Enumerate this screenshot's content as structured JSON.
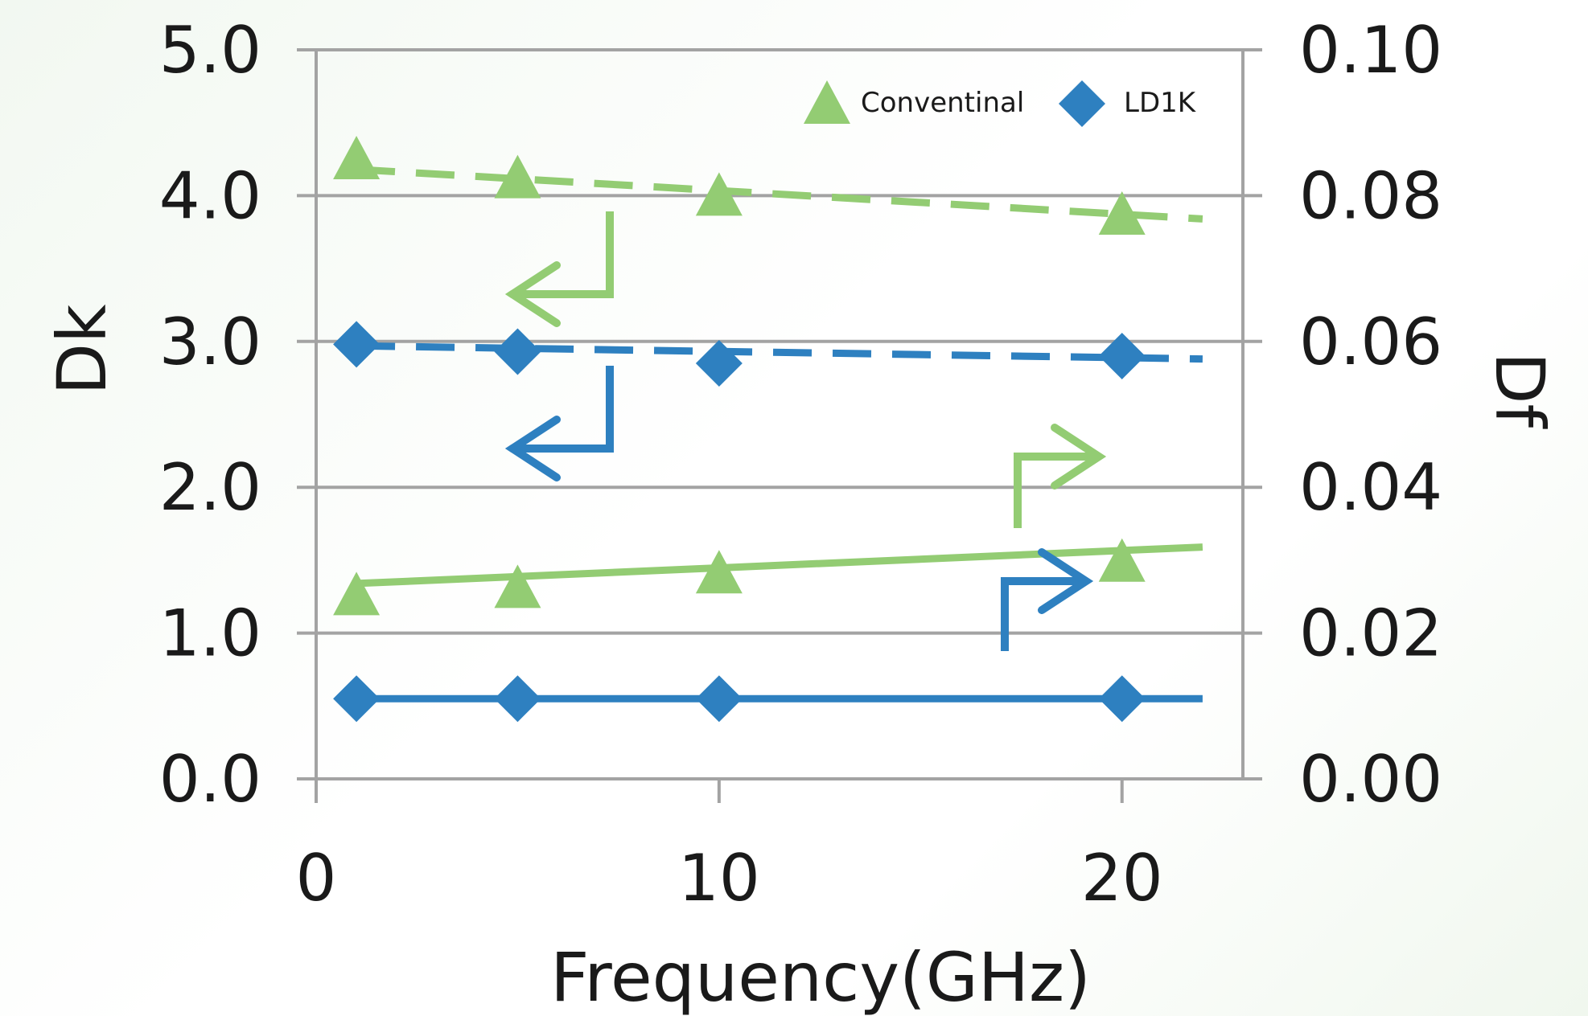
{
  "chart_data": {
    "type": "line",
    "xlabel": "Frequency(GHz)",
    "ylabel_left": "Dk",
    "ylabel_right": "Df",
    "x_ticks": [
      "0",
      "10",
      "20"
    ],
    "xlim": [
      0,
      23
    ],
    "y_left_ticks": [
      "0.0",
      "1.0",
      "2.0",
      "3.0",
      "4.0",
      "5.0"
    ],
    "y_left_lim": [
      0,
      5
    ],
    "y_right_ticks": [
      "0.00",
      "0.02",
      "0.04",
      "0.06",
      "0.08",
      "0.10"
    ],
    "y_right_lim": [
      0,
      0.1
    ],
    "grid": "horizontal",
    "legend_position": "top-right",
    "x": [
      1,
      5,
      10,
      20
    ],
    "series": [
      {
        "name": "Conventinal",
        "quantity": "Dk",
        "axis": "left",
        "values": [
          4.25,
          4.12,
          4.0,
          3.87
        ],
        "color": "#93cc73",
        "marker": "triangle",
        "line": "dashed-trend"
      },
      {
        "name": "LD1K",
        "quantity": "Dk",
        "axis": "left",
        "values": [
          2.98,
          2.93,
          2.85,
          2.9
        ],
        "color": "#2e80c0",
        "marker": "diamond",
        "line": "dashed-trend"
      },
      {
        "name": "Conventinal",
        "quantity": "Df",
        "axis": "right",
        "values": [
          0.0252,
          0.0262,
          0.0282,
          0.0298
        ],
        "color": "#93cc73",
        "marker": "triangle",
        "line": "solid-trend"
      },
      {
        "name": "LD1K",
        "quantity": "Df",
        "axis": "right",
        "values": [
          0.011,
          0.011,
          0.011,
          0.011
        ],
        "color": "#2e80c0",
        "marker": "diamond",
        "line": "solid-trend"
      }
    ],
    "trendlines": [
      {
        "series": "Conventinal",
        "axis": "left",
        "style": "dashed",
        "color": "#93cc73",
        "x": [
          1,
          22
        ],
        "y": [
          4.18,
          3.84
        ]
      },
      {
        "series": "LD1K",
        "axis": "left",
        "style": "dashed",
        "color": "#2e80c0",
        "x": [
          1,
          22
        ],
        "y": [
          2.97,
          2.88
        ]
      },
      {
        "series": "Conventinal",
        "axis": "right",
        "style": "solid",
        "color": "#93cc73",
        "x": [
          1,
          22
        ],
        "y": [
          0.0268,
          0.0318
        ]
      },
      {
        "series": "LD1K",
        "axis": "right",
        "style": "solid",
        "color": "#2e80c0",
        "x": [
          1,
          22
        ],
        "y": [
          0.011,
          0.011
        ]
      }
    ],
    "annotations": [
      {
        "type": "arrow",
        "points_to": "left-axis",
        "color": "#93cc73",
        "series": "Conventinal"
      },
      {
        "type": "arrow",
        "points_to": "left-axis",
        "color": "#2e80c0",
        "series": "LD1K"
      },
      {
        "type": "arrow",
        "points_to": "right-axis",
        "color": "#93cc73",
        "series": "Conventinal"
      },
      {
        "type": "arrow",
        "points_to": "right-axis",
        "color": "#2e80c0",
        "series": "LD1K"
      }
    ],
    "legend": [
      {
        "label": "Conventinal",
        "marker": "triangle",
        "color": "#93cc73"
      },
      {
        "label": "LD1K",
        "marker": "diamond",
        "color": "#2e80c0"
      }
    ]
  }
}
